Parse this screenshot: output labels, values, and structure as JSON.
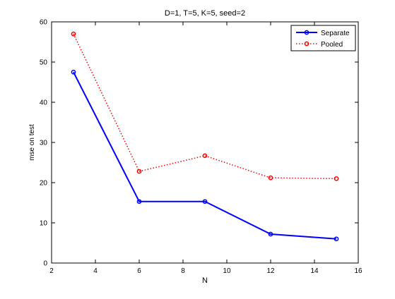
{
  "chart_data": {
    "type": "line",
    "title": "D=1, T=5, K=5, seed=2",
    "xlabel": "N",
    "ylabel": "mse on test",
    "xlim": [
      2,
      16
    ],
    "ylim": [
      0,
      60
    ],
    "xticks": [
      2,
      4,
      6,
      8,
      10,
      12,
      14,
      16
    ],
    "yticks": [
      0,
      10,
      20,
      30,
      40,
      50,
      60
    ],
    "x": [
      3,
      6,
      9,
      12,
      15
    ],
    "series": [
      {
        "name": "Separate",
        "values": [
          47.5,
          15.3,
          15.3,
          7.2,
          6.0
        ],
        "color": "#0000ff",
        "linestyle": "solid",
        "marker": "circle"
      },
      {
        "name": "Pooled",
        "values": [
          57.0,
          22.8,
          26.7,
          21.2,
          21.0
        ],
        "color": "#ff0000",
        "linestyle": "dotted",
        "marker": "circle"
      }
    ],
    "legend_position": "top-right",
    "grid": false
  }
}
